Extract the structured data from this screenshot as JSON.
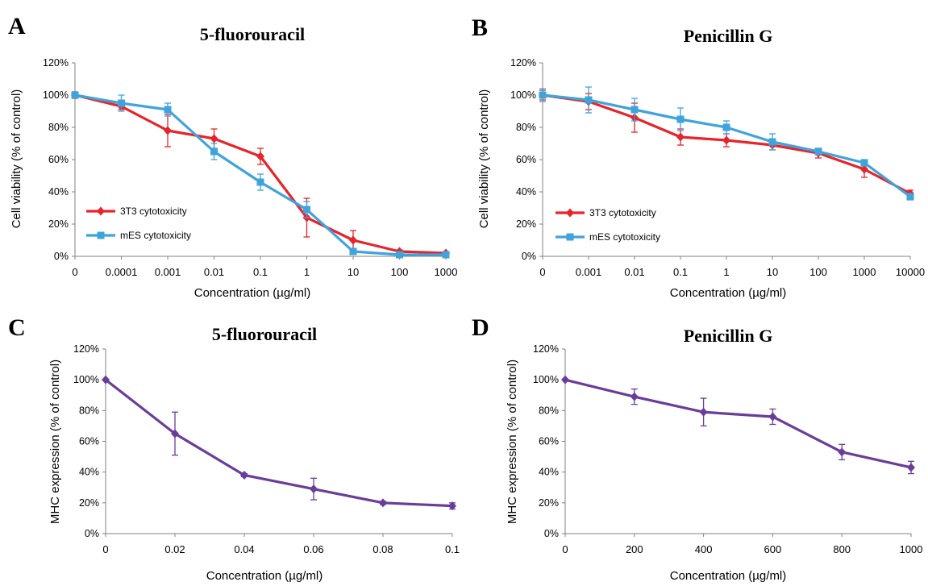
{
  "chart_data": [
    {
      "type": "line",
      "panel_letter": "A",
      "title": "5-fluorouracil",
      "xlabel": "Concentration (µg/ml)",
      "ylabel": "Cell viability (% of control)",
      "categories": [
        "0",
        "0.0001",
        "0.001",
        "0.01",
        "0.1",
        "1",
        "10",
        "100",
        "1000"
      ],
      "yticks": [
        "0%",
        "20%",
        "40%",
        "60%",
        "80%",
        "100%",
        "120%"
      ],
      "ylim": [
        0,
        120
      ],
      "legend_position": "bottom-left",
      "series": [
        {
          "name": "3T3 cytotoxicity",
          "color": "#e8232a",
          "marker": "diamond",
          "values": [
            100,
            93,
            78,
            73,
            62,
            24,
            10,
            3,
            2
          ],
          "errors": [
            2,
            2,
            10,
            6,
            5,
            12,
            6,
            1,
            1
          ]
        },
        {
          "name": "mES cytotoxicity",
          "color": "#3fa3dc",
          "marker": "square",
          "values": [
            100,
            95,
            91,
            65,
            46,
            29,
            3,
            1,
            1
          ],
          "errors": [
            2,
            5,
            4,
            5,
            5,
            5,
            1,
            0.5,
            0.5
          ]
        }
      ]
    },
    {
      "type": "line",
      "panel_letter": "B",
      "title": "Penicillin  G",
      "xlabel": "Concentration (µg/ml)",
      "ylabel": "Cell viability (% of control)",
      "categories": [
        "0",
        "0.001",
        "0.01",
        "0.1",
        "1",
        "10",
        "100",
        "1000",
        "10000"
      ],
      "yticks": [
        "0%",
        "20%",
        "40%",
        "60%",
        "80%",
        "100%",
        "120%"
      ],
      "ylim": [
        0,
        120
      ],
      "legend_position": "bottom-left",
      "series": [
        {
          "name": "3T3 cytotoxicity",
          "color": "#e8232a",
          "marker": "diamond",
          "values": [
            100,
            96,
            86,
            74,
            72,
            69,
            64,
            54,
            39
          ],
          "errors": [
            3,
            5,
            9,
            5,
            4,
            3,
            3,
            5,
            2
          ]
        },
        {
          "name": "mES cytotoxicity",
          "color": "#3fa3dc",
          "marker": "square",
          "values": [
            100,
            97,
            91,
            85,
            80,
            71,
            65,
            58,
            37
          ],
          "errors": [
            4,
            8,
            7,
            7,
            4,
            5,
            2,
            2,
            2
          ]
        }
      ]
    },
    {
      "type": "line",
      "panel_letter": "C",
      "title": "5-fluorouracil",
      "xlabel": "Concentration (µg/ml)",
      "ylabel": "MHC expression (% of control)",
      "categories": [
        "0",
        "0.02",
        "0.04",
        "0.06",
        "0.08",
        "0.1"
      ],
      "yticks": [
        "0%",
        "20%",
        "40%",
        "60%",
        "80%",
        "100%",
        "120%"
      ],
      "ylim": [
        0,
        120
      ],
      "series": [
        {
          "color": "#6a3d9a",
          "marker": "diamond",
          "values": [
            100,
            65,
            38,
            29,
            20,
            18
          ],
          "errors": [
            0,
            14,
            1,
            7,
            1,
            2
          ]
        }
      ]
    },
    {
      "type": "line",
      "panel_letter": "D",
      "title": "Penicillin  G",
      "xlabel": "Concentration (µg/ml)",
      "ylabel": "MHC expression (% of control)",
      "categories": [
        "0",
        "200",
        "400",
        "600",
        "800",
        "1000"
      ],
      "yticks": [
        "0%",
        "20%",
        "40%",
        "60%",
        "80%",
        "100%",
        "120%"
      ],
      "ylim": [
        0,
        120
      ],
      "series": [
        {
          "color": "#6a3d9a",
          "marker": "diamond",
          "values": [
            100,
            89,
            79,
            76,
            53,
            43
          ],
          "errors": [
            0,
            5,
            9,
            5,
            5,
            4
          ]
        }
      ]
    }
  ]
}
